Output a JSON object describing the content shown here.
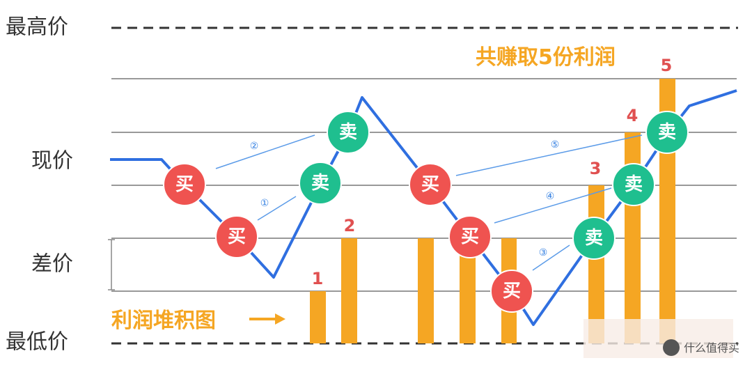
{
  "title": "共赚取5份利润",
  "price_levels": {
    "highest": "最高价",
    "current": "现价",
    "spread": "差价",
    "lowest": "最低价"
  },
  "stack_label": "利润堆积图",
  "buy_markers": [
    "买",
    "买",
    "买",
    "买",
    "买"
  ],
  "sell_markers": [
    "卖",
    "卖",
    "卖",
    "卖",
    "卖"
  ],
  "trade_steps": [
    "②",
    "①",
    "⑤",
    "④",
    "③"
  ],
  "profit_counts": [
    "1",
    "2",
    "3",
    "4",
    "5"
  ],
  "watermark": "什么值得买"
}
